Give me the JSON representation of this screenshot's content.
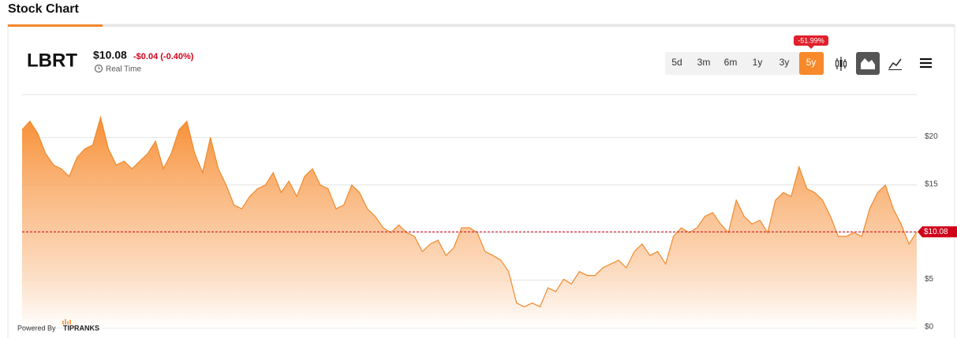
{
  "header": {
    "section_title": "Stock Chart",
    "ticker": "LBRT",
    "price": "$10.08",
    "change": "-$0.04 (-0.40%)",
    "realtime": "Real Time",
    "ranges": [
      "5d",
      "3m",
      "6m",
      "1y",
      "3y",
      "5y"
    ],
    "range_change": "-51.99%",
    "powered_by": "Powered By",
    "brand": "TIPRANKS"
  },
  "chart_data": {
    "type": "area",
    "color": "#f08a2c",
    "values": [
      20.8,
      21.7,
      20.4,
      18.3,
      17.1,
      16.7,
      15.9,
      17.9,
      18.8,
      19.2,
      22.1,
      18.8,
      17.1,
      17.5,
      16.7,
      17.5,
      18.3,
      19.6,
      16.7,
      18.3,
      20.8,
      21.7,
      18.3,
      16.3,
      20.0,
      16.7,
      15.0,
      12.9,
      12.5,
      13.8,
      14.6,
      15.0,
      16.3,
      14.2,
      15.4,
      13.8,
      15.9,
      16.7,
      15.0,
      14.6,
      12.5,
      12.9,
      15.0,
      14.2,
      12.5,
      11.7,
      10.5,
      10.0,
      10.8,
      10.0,
      9.6,
      8.0,
      8.8,
      9.2,
      7.6,
      8.4,
      10.5,
      10.5,
      10.0,
      8.0,
      7.6,
      7.1,
      5.9,
      2.6,
      2.2,
      2.6,
      2.2,
      4.2,
      3.8,
      5.1,
      4.6,
      5.9,
      5.5,
      5.5,
      6.3,
      6.7,
      7.1,
      6.3,
      8.0,
      8.8,
      7.6,
      8.0,
      6.7,
      9.6,
      10.5,
      10.0,
      10.5,
      11.7,
      12.1,
      10.9,
      10.0,
      13.4,
      11.7,
      10.9,
      11.3,
      10.0,
      13.4,
      14.2,
      13.8,
      16.9,
      14.6,
      14.2,
      13.4,
      11.7,
      9.6,
      9.6,
      10.0,
      9.6,
      12.5,
      14.2,
      15.0,
      12.5,
      10.9,
      8.8,
      10.08
    ],
    "ylim": [
      0,
      24.5
    ],
    "yticks": [
      {
        "value": 0,
        "label": "$0"
      },
      {
        "value": 5,
        "label": "$5"
      },
      {
        "value": 10,
        "label": "$10"
      },
      {
        "value": 15,
        "label": "$15"
      },
      {
        "value": 20,
        "label": "$20"
      }
    ],
    "current_price": {
      "value": 10.08,
      "label": "$10.08"
    },
    "grid": true
  }
}
